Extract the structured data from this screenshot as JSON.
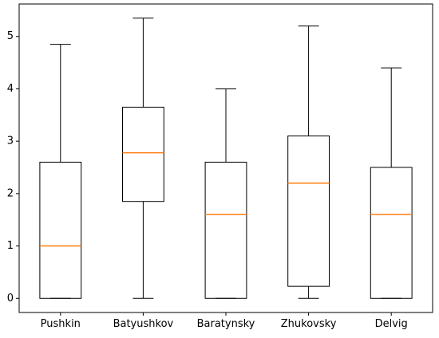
{
  "chart_data": {
    "type": "boxplot",
    "categories": [
      "Pushkin",
      "Batyushkov",
      "Baratynsky",
      "Zhukovsky",
      "Delvig"
    ],
    "boxes": [
      {
        "whisker_low": 0,
        "q1": 0,
        "median": 1.0,
        "q3": 2.6,
        "whisker_high": 4.85
      },
      {
        "whisker_low": 0,
        "q1": 1.85,
        "median": 2.78,
        "q3": 3.65,
        "whisker_high": 5.35
      },
      {
        "whisker_low": 0,
        "q1": 0,
        "median": 1.6,
        "q3": 2.6,
        "whisker_high": 4.0
      },
      {
        "whisker_low": 0,
        "q1": 0.23,
        "median": 2.2,
        "q3": 3.1,
        "whisker_high": 5.2
      },
      {
        "whisker_low": 0,
        "q1": 0,
        "median": 1.6,
        "q3": 2.5,
        "whisker_high": 4.4
      }
    ],
    "y_ticks": [
      0,
      1,
      2,
      3,
      4,
      5
    ],
    "ylim": [
      -0.27,
      5.62
    ],
    "title": "",
    "xlabel": "",
    "ylabel": "",
    "grid": false,
    "legend": false,
    "box_color": "#000000",
    "median_color": "#ff7f0e"
  }
}
